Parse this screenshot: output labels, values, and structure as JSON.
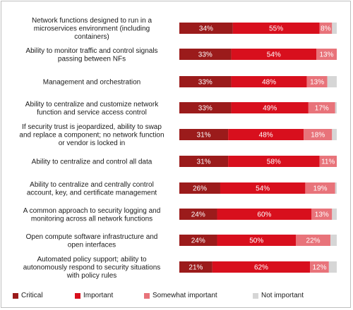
{
  "chart_data": {
    "type": "bar",
    "orientation": "horizontal",
    "stacked": true,
    "xlim": [
      0,
      100
    ],
    "grid": false,
    "legend_position": "bottom",
    "categories": [
      "Network functions designed to run in a microservices environment (including containers)",
      "Ability to monitor traffic and control signals passing between NFs",
      "Management and orchestration",
      "Ability to centralize and customize network function and service access control",
      "If security trust is jeopardized, ability to swap and replace a component; no network function or vendor is locked in",
      "Ability to centralize and control all data",
      "Ability to centralize and centrally control account, key, and certificate management",
      "A common approach to security logging and monitoring across all network functions",
      "Open compute software infrastructure and open interfaces",
      "Automated policy support; ability to autonomously respond to security situations with policy rules"
    ],
    "category_lines": [
      [
        "Network functions designed to run in a",
        "microservices environment (including",
        "containers)"
      ],
      [
        "Ability to monitor traffic and control signals",
        "passing between NFs"
      ],
      [
        "Management and orchestration"
      ],
      [
        "Ability to centralize and customize network",
        "function and service access control"
      ],
      [
        "If security trust is jeopardized, ability to swap",
        "and replace a component; no network function",
        "or vendor is locked in"
      ],
      [
        "Ability to centralize and control all data"
      ],
      [
        "Ability to centralize and centrally control",
        "account, key, and certificate management"
      ],
      [
        "A common approach to security logging and",
        "monitoring across all network functions"
      ],
      [
        "Open compute software infrastructure and",
        "open interfaces"
      ],
      [
        "Automated policy support; ability to",
        "autonomously respond to security situations",
        "with policy rules"
      ]
    ],
    "series": [
      {
        "name": "Critical",
        "color": "#9b1b1b",
        "values": [
          34,
          33,
          33,
          33,
          31,
          31,
          26,
          24,
          24,
          21
        ]
      },
      {
        "name": "Important",
        "color": "#d80f1d",
        "values": [
          55,
          54,
          48,
          49,
          48,
          58,
          54,
          60,
          50,
          62
        ]
      },
      {
        "name": "Somewhat important",
        "color": "#e8737a",
        "values": [
          8,
          13,
          13,
          17,
          18,
          11,
          19,
          13,
          22,
          12
        ]
      },
      {
        "name": "Not important",
        "color": "#d6d6d6",
        "values": [
          3,
          0,
          6,
          1,
          3,
          0,
          1,
          3,
          4,
          5
        ]
      }
    ],
    "data_labels": [
      [
        "34%",
        "55%",
        "8%",
        ""
      ],
      [
        "33%",
        "54%",
        "13%",
        ""
      ],
      [
        "33%",
        "48%",
        "13%",
        ""
      ],
      [
        "33%",
        "49%",
        "17%",
        ""
      ],
      [
        "31%",
        "48%",
        "18%",
        ""
      ],
      [
        "31%",
        "58%",
        "11%",
        ""
      ],
      [
        "26%",
        "54%",
        "19%",
        ""
      ],
      [
        "24%",
        "60%",
        "13%",
        ""
      ],
      [
        "24%",
        "50%",
        "22%",
        ""
      ],
      [
        "21%",
        "62%",
        "12%",
        ""
      ]
    ]
  }
}
